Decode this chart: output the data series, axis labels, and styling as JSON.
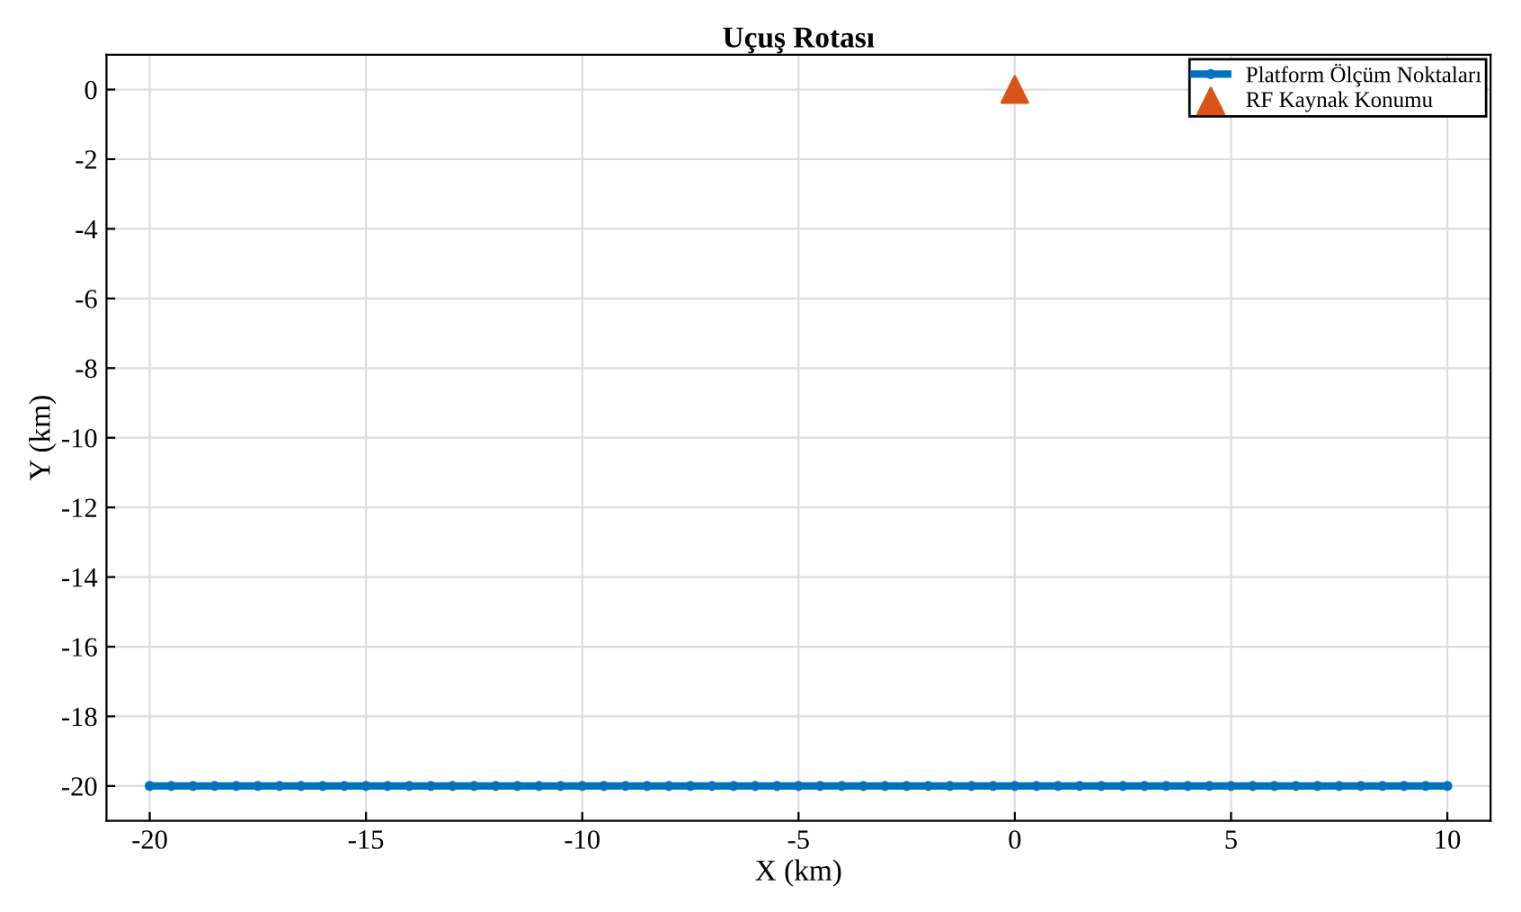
{
  "chart_data": {
    "type": "line",
    "title": "Uçuş Rotası",
    "xlabel": "X (km)",
    "ylabel": "Y (km)",
    "series": [
      {
        "name": "Platform Ölçüm Noktaları",
        "color": "#0072bd",
        "marker": "circle",
        "x": [
          -20,
          -19.5,
          -19,
          -18.5,
          -18,
          -17.5,
          -17,
          -16.5,
          -16,
          -15.5,
          -15,
          -14.5,
          -14,
          -13.5,
          -13,
          -12.5,
          -12,
          -11.5,
          -11,
          -10.5,
          -10,
          -9.5,
          -9,
          -8.5,
          -8,
          -7.5,
          -7,
          -6.5,
          -6,
          -5.5,
          -5,
          -4.5,
          -4,
          -3.5,
          -3,
          -2.5,
          -2,
          -1.5,
          -1,
          -0.5,
          0,
          0.5,
          1,
          1.5,
          2,
          2.5,
          3,
          3.5,
          4,
          4.5,
          5,
          5.5,
          6,
          6.5,
          7,
          7.5,
          8,
          8.5,
          9,
          9.5,
          10
        ],
        "values": [
          -20,
          -20,
          -20,
          -20,
          -20,
          -20,
          -20,
          -20,
          -20,
          -20,
          -20,
          -20,
          -20,
          -20,
          -20,
          -20,
          -20,
          -20,
          -20,
          -20,
          -20,
          -20,
          -20,
          -20,
          -20,
          -20,
          -20,
          -20,
          -20,
          -20,
          -20,
          -20,
          -20,
          -20,
          -20,
          -20,
          -20,
          -20,
          -20,
          -20,
          -20,
          -20,
          -20,
          -20,
          -20,
          -20,
          -20,
          -20,
          -20,
          -20,
          -20,
          -20,
          -20,
          -20,
          -20,
          -20,
          -20,
          -20,
          -20,
          -20,
          -20
        ]
      },
      {
        "name": "RF Kaynak Konumu",
        "type": "scatter",
        "color": "#d95319",
        "marker": "triangle",
        "x": [
          0
        ],
        "values": [
          0
        ]
      }
    ],
    "xlim": [
      -21,
      11
    ],
    "ylim": [
      -21,
      1
    ],
    "xticks": [
      {
        "value": -20,
        "label": "-20"
      },
      {
        "value": -15,
        "label": "-15"
      },
      {
        "value": -10,
        "label": "-10"
      },
      {
        "value": -5,
        "label": "-5"
      },
      0,
      5,
      10
    ],
    "yticks": [
      {
        "value": -20,
        "label": "-20"
      },
      {
        "value": -18,
        "label": "-18"
      },
      {
        "value": -16,
        "label": "-16"
      },
      {
        "value": -14,
        "label": "-14"
      },
      {
        "value": -12,
        "label": "-12"
      },
      {
        "value": -10,
        "label": "-10"
      },
      {
        "value": -8,
        "label": "-8"
      },
      {
        "value": -6,
        "label": "-6"
      },
      {
        "value": -4,
        "label": "-4"
      },
      {
        "value": -2,
        "label": "-2"
      },
      0
    ],
    "grid": true,
    "legend": "top right"
  }
}
